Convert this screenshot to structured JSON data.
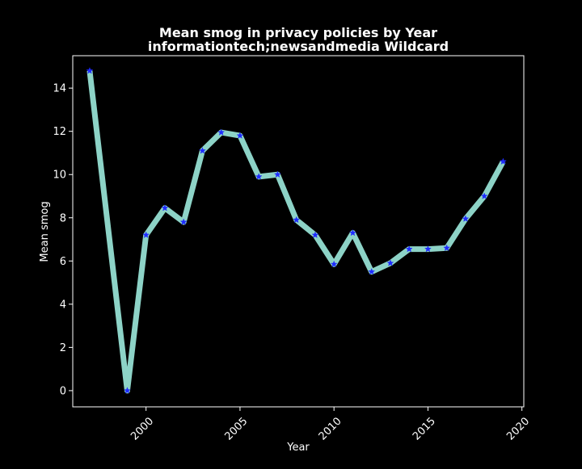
{
  "chart_data": {
    "type": "line",
    "title_line1": "Mean smog in privacy policies by Year",
    "title_line2": "informationtech;newsandmedia Wildcard",
    "xlabel": "Year",
    "ylabel": "Mean smog",
    "xlim": [
      1996.1,
      2020.1
    ],
    "ylim": [
      -0.75,
      15.5
    ],
    "xticks": [
      2000,
      2005,
      2010,
      2015,
      2020
    ],
    "yticks": [
      0,
      2,
      4,
      6,
      8,
      10,
      12,
      14
    ],
    "grid": false,
    "series": [
      {
        "x": [
          1997,
          1999,
          2000,
          2001,
          2002,
          2003,
          2004,
          2005,
          2006,
          2007,
          2008,
          2009,
          2010,
          2011,
          2012,
          2013,
          2014,
          2015,
          2016,
          2017,
          2018,
          2019
        ],
        "y": [
          14.8,
          0.0,
          7.2,
          8.45,
          7.8,
          11.1,
          11.95,
          11.8,
          9.9,
          10.0,
          7.9,
          7.2,
          5.85,
          7.3,
          5.5,
          5.9,
          6.55,
          6.55,
          6.6,
          7.95,
          9.0,
          10.6
        ]
      }
    ]
  },
  "colors": {
    "background": "#000000",
    "line": "#8dd3c7",
    "marker": "#1f2bff",
    "axes": "#ffffff"
  }
}
